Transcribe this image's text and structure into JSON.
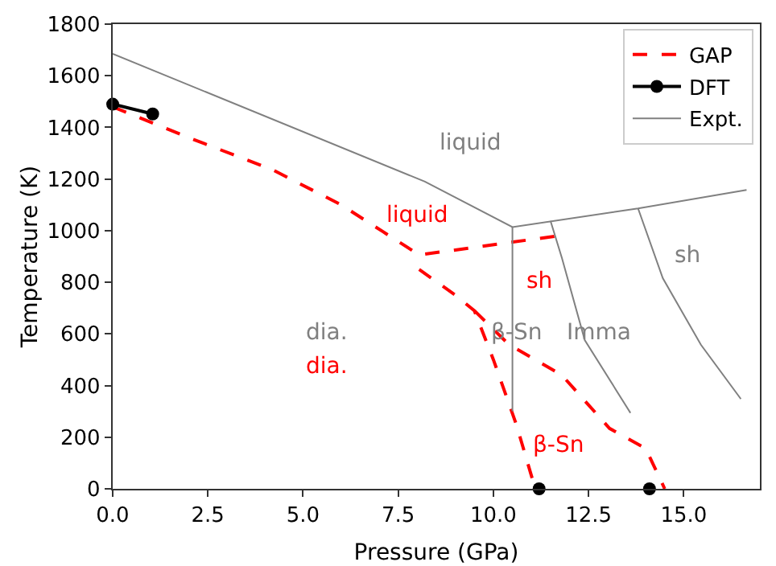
{
  "chart_data": {
    "type": "line",
    "xlabel": "Pressure (GPa)",
    "ylabel": "Temperature (K)",
    "xlim": [
      0,
      17
    ],
    "ylim": [
      0,
      1800
    ],
    "xticks": [
      {
        "value": 0,
        "label": "0.0"
      },
      {
        "value": 2.5,
        "label": "2.5"
      },
      {
        "value": 5,
        "label": "5.0"
      },
      {
        "value": 7.5,
        "label": "7.5"
      },
      {
        "value": 10,
        "label": "10.0"
      },
      {
        "value": 12.5,
        "label": "12.5"
      },
      {
        "value": 15,
        "label": "15.0"
      }
    ],
    "yticks": [
      0,
      200,
      400,
      600,
      800,
      1000,
      1200,
      1400,
      1600,
      1800
    ],
    "legend": "top right",
    "grid": false,
    "series": [
      {
        "name": "GAP",
        "color": "#ff0000",
        "line_style": "dashed",
        "marker": "none",
        "x": [
          0,
          2,
          4.2,
          6,
          7.1,
          8.05,
          11.9,
          null,
          8.05,
          9,
          9.5,
          10,
          10.6,
          11.1,
          null,
          9.5,
          10.4,
          11.8,
          13.05,
          14,
          14.5
        ],
        "values": [
          1480,
          1360,
          1236,
          1100,
          996,
          906,
          984,
          null,
          850,
          750,
          690,
          500,
          250,
          0,
          null,
          690,
          560,
          440,
          234,
          156,
          0
        ]
      },
      {
        "name": "DFT",
        "color": "#000000",
        "line_style": "solid",
        "marker": "circle",
        "x": [
          0,
          1.05,
          null,
          11.2,
          null,
          14.1
        ],
        "values": [
          1490,
          1452,
          null,
          0,
          null,
          0
        ]
      },
      {
        "name": "Expt.",
        "color": "#808080",
        "line_style": "solid",
        "marker": "none",
        "x": [
          0,
          8.2,
          10.5,
          13.8,
          16.65,
          null,
          10.5,
          10.5,
          null,
          11.5,
          11.8,
          12.4,
          13.6,
          null,
          13.8,
          14.45,
          15.45,
          16.5
        ],
        "values": [
          1685,
          1190,
          1014,
          1086,
          1158,
          null,
          1014,
          300,
          null,
          1038,
          894,
          576,
          294,
          null,
          1086,
          816,
          558,
          348
        ]
      }
    ],
    "annotations": [
      "liquid",
      "liquid",
      "sh",
      "sh",
      "β-Sn",
      "Imma",
      "dia.",
      "dia.",
      "β-Sn"
    ]
  }
}
